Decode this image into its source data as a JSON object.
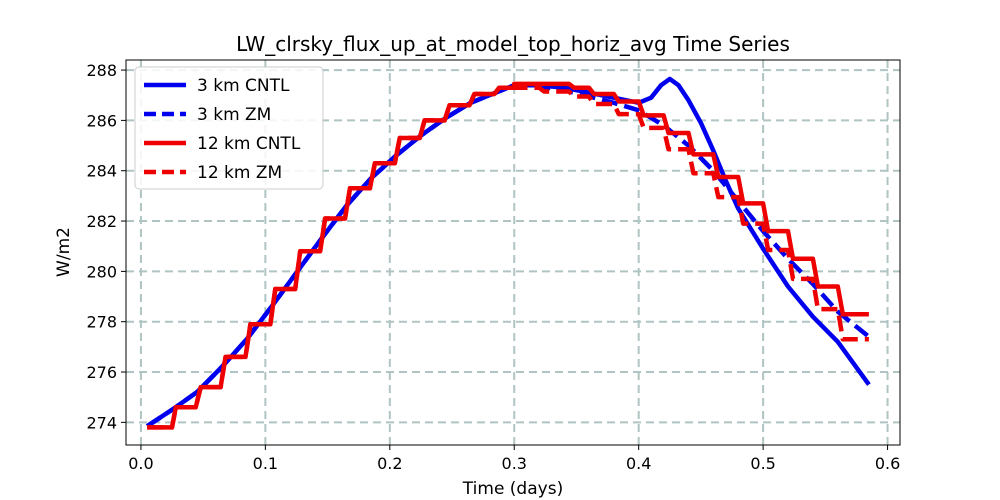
{
  "chart_data": {
    "type": "line",
    "title": "LW_clrsky_flux_up_at_model_top_horiz_avg Time Series",
    "xlabel": "Time (days)",
    "ylabel": "W/m2",
    "xlim": [
      -0.012,
      0.61
    ],
    "ylim": [
      273.1,
      288.4
    ],
    "xticks": [
      0.0,
      0.1,
      0.2,
      0.3,
      0.4,
      0.5,
      0.6
    ],
    "xtick_labels": [
      "0.0",
      "0.1",
      "0.2",
      "0.3",
      "0.4",
      "0.5",
      "0.6"
    ],
    "yticks": [
      274,
      276,
      278,
      280,
      282,
      284,
      286,
      288
    ],
    "ytick_labels": [
      "274",
      "276",
      "278",
      "280",
      "282",
      "284",
      "286",
      "288"
    ],
    "grid": true,
    "legend_position": "top-left",
    "series": [
      {
        "name": "3 km CNTL",
        "color": "#0000ee",
        "style": "solid",
        "points": [
          [
            0.005,
            273.85
          ],
          [
            0.025,
            274.5
          ],
          [
            0.045,
            275.2
          ],
          [
            0.065,
            276.2
          ],
          [
            0.085,
            277.3
          ],
          [
            0.105,
            278.6
          ],
          [
            0.125,
            279.95
          ],
          [
            0.145,
            281.3
          ],
          [
            0.165,
            282.6
          ],
          [
            0.185,
            283.7
          ],
          [
            0.205,
            284.6
          ],
          [
            0.225,
            285.4
          ],
          [
            0.245,
            286.1
          ],
          [
            0.265,
            286.7
          ],
          [
            0.285,
            287.1
          ],
          [
            0.3,
            287.4
          ],
          [
            0.32,
            287.4
          ],
          [
            0.34,
            287.3
          ],
          [
            0.36,
            287.1
          ],
          [
            0.38,
            286.9
          ],
          [
            0.4,
            286.7
          ],
          [
            0.41,
            286.9
          ],
          [
            0.418,
            287.4
          ],
          [
            0.425,
            287.65
          ],
          [
            0.432,
            287.4
          ],
          [
            0.44,
            286.8
          ],
          [
            0.45,
            285.9
          ],
          [
            0.46,
            284.8
          ],
          [
            0.47,
            283.6
          ],
          [
            0.48,
            282.5
          ],
          [
            0.5,
            280.9
          ],
          [
            0.52,
            279.4
          ],
          [
            0.54,
            278.2
          ],
          [
            0.56,
            277.2
          ],
          [
            0.585,
            275.5
          ]
        ]
      },
      {
        "name": "3 km ZM",
        "color": "#0000ee",
        "style": "dashed",
        "points": [
          [
            0.005,
            273.85
          ],
          [
            0.025,
            274.5
          ],
          [
            0.045,
            275.2
          ],
          [
            0.065,
            276.2
          ],
          [
            0.085,
            277.3
          ],
          [
            0.105,
            278.6
          ],
          [
            0.125,
            279.95
          ],
          [
            0.145,
            281.3
          ],
          [
            0.165,
            282.6
          ],
          [
            0.185,
            283.7
          ],
          [
            0.205,
            284.6
          ],
          [
            0.225,
            285.4
          ],
          [
            0.245,
            286.1
          ],
          [
            0.265,
            286.7
          ],
          [
            0.285,
            287.1
          ],
          [
            0.3,
            287.4
          ],
          [
            0.32,
            287.35
          ],
          [
            0.34,
            287.2
          ],
          [
            0.36,
            286.95
          ],
          [
            0.38,
            286.7
          ],
          [
            0.4,
            286.4
          ],
          [
            0.42,
            285.8
          ],
          [
            0.44,
            285.0
          ],
          [
            0.46,
            284.0
          ],
          [
            0.48,
            282.8
          ],
          [
            0.5,
            281.6
          ],
          [
            0.52,
            280.5
          ],
          [
            0.54,
            279.5
          ],
          [
            0.56,
            278.4
          ],
          [
            0.585,
            277.4
          ]
        ]
      },
      {
        "name": "12 km CNTL",
        "color": "#ee0000",
        "style": "solid",
        "points": [
          [
            0.005,
            273.8
          ],
          [
            0.025,
            273.8
          ],
          [
            0.028,
            274.6
          ],
          [
            0.044,
            274.6
          ],
          [
            0.048,
            275.4
          ],
          [
            0.064,
            275.4
          ],
          [
            0.068,
            276.6
          ],
          [
            0.084,
            276.6
          ],
          [
            0.088,
            277.9
          ],
          [
            0.104,
            277.9
          ],
          [
            0.108,
            279.3
          ],
          [
            0.124,
            279.3
          ],
          [
            0.128,
            280.8
          ],
          [
            0.144,
            280.8
          ],
          [
            0.148,
            282.1
          ],
          [
            0.164,
            282.1
          ],
          [
            0.168,
            283.3
          ],
          [
            0.184,
            283.3
          ],
          [
            0.188,
            284.3
          ],
          [
            0.204,
            284.3
          ],
          [
            0.208,
            285.3
          ],
          [
            0.224,
            285.3
          ],
          [
            0.228,
            286.0
          ],
          [
            0.244,
            286.0
          ],
          [
            0.248,
            286.6
          ],
          [
            0.264,
            286.6
          ],
          [
            0.268,
            287.05
          ],
          [
            0.284,
            287.05
          ],
          [
            0.288,
            287.3
          ],
          [
            0.3,
            287.3
          ],
          [
            0.3,
            287.45
          ],
          [
            0.344,
            287.45
          ],
          [
            0.348,
            287.3
          ],
          [
            0.36,
            287.3
          ],
          [
            0.364,
            287.05
          ],
          [
            0.38,
            287.05
          ],
          [
            0.384,
            286.75
          ],
          [
            0.4,
            286.75
          ],
          [
            0.404,
            286.2
          ],
          [
            0.42,
            286.2
          ],
          [
            0.424,
            285.5
          ],
          [
            0.44,
            285.5
          ],
          [
            0.444,
            284.65
          ],
          [
            0.46,
            284.65
          ],
          [
            0.464,
            283.75
          ],
          [
            0.48,
            283.75
          ],
          [
            0.484,
            282.7
          ],
          [
            0.5,
            282.7
          ],
          [
            0.504,
            281.6
          ],
          [
            0.52,
            281.6
          ],
          [
            0.524,
            280.5
          ],
          [
            0.54,
            280.5
          ],
          [
            0.544,
            279.4
          ],
          [
            0.56,
            279.4
          ],
          [
            0.564,
            278.3
          ],
          [
            0.585,
            278.3
          ]
        ]
      },
      {
        "name": "12 km ZM",
        "color": "#ee0000",
        "style": "dashed",
        "points": [
          [
            0.005,
            273.8
          ],
          [
            0.025,
            273.8
          ],
          [
            0.028,
            274.6
          ],
          [
            0.044,
            274.6
          ],
          [
            0.048,
            275.4
          ],
          [
            0.064,
            275.4
          ],
          [
            0.068,
            276.6
          ],
          [
            0.084,
            276.6
          ],
          [
            0.088,
            277.9
          ],
          [
            0.104,
            277.9
          ],
          [
            0.108,
            279.3
          ],
          [
            0.124,
            279.3
          ],
          [
            0.128,
            280.8
          ],
          [
            0.144,
            280.8
          ],
          [
            0.148,
            282.1
          ],
          [
            0.164,
            282.1
          ],
          [
            0.168,
            283.3
          ],
          [
            0.184,
            283.3
          ],
          [
            0.188,
            284.3
          ],
          [
            0.204,
            284.3
          ],
          [
            0.208,
            285.3
          ],
          [
            0.224,
            285.3
          ],
          [
            0.228,
            286.0
          ],
          [
            0.244,
            286.0
          ],
          [
            0.248,
            286.6
          ],
          [
            0.264,
            286.6
          ],
          [
            0.268,
            287.05
          ],
          [
            0.284,
            287.05
          ],
          [
            0.288,
            287.3
          ],
          [
            0.3,
            287.3
          ],
          [
            0.3,
            287.3
          ],
          [
            0.32,
            287.3
          ],
          [
            0.324,
            287.15
          ],
          [
            0.344,
            287.15
          ],
          [
            0.348,
            286.95
          ],
          [
            0.36,
            286.95
          ],
          [
            0.364,
            286.65
          ],
          [
            0.38,
            286.65
          ],
          [
            0.384,
            286.25
          ],
          [
            0.4,
            286.25
          ],
          [
            0.404,
            285.7
          ],
          [
            0.42,
            285.7
          ],
          [
            0.424,
            284.85
          ],
          [
            0.44,
            284.85
          ],
          [
            0.444,
            283.9
          ],
          [
            0.46,
            283.9
          ],
          [
            0.464,
            282.95
          ],
          [
            0.48,
            282.95
          ],
          [
            0.484,
            281.9
          ],
          [
            0.5,
            281.9
          ],
          [
            0.504,
            280.85
          ],
          [
            0.52,
            280.85
          ],
          [
            0.524,
            279.7
          ],
          [
            0.54,
            279.7
          ],
          [
            0.544,
            278.5
          ],
          [
            0.56,
            278.5
          ],
          [
            0.564,
            277.3
          ],
          [
            0.585,
            277.3
          ]
        ]
      }
    ]
  }
}
